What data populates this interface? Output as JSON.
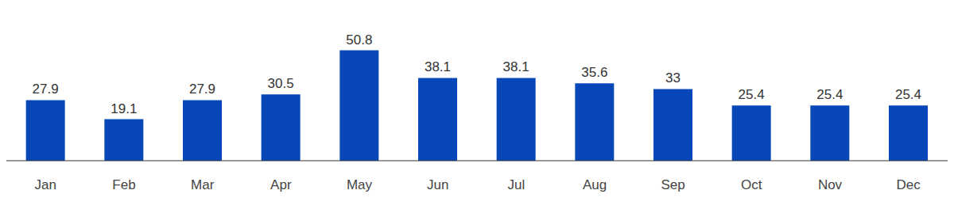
{
  "chart_data": {
    "type": "bar",
    "categories": [
      "Jan",
      "Feb",
      "Mar",
      "Apr",
      "May",
      "Jun",
      "Jul",
      "Aug",
      "Sep",
      "Oct",
      "Nov",
      "Dec"
    ],
    "values": [
      27.9,
      19.1,
      27.9,
      30.5,
      50.8,
      38.1,
      38.1,
      35.6,
      33,
      25.4,
      25.4,
      25.4
    ],
    "color": "#0747b8",
    "ylim": [
      0,
      55
    ],
    "grid": false,
    "data_labels": true,
    "tick_labels": "x"
  }
}
